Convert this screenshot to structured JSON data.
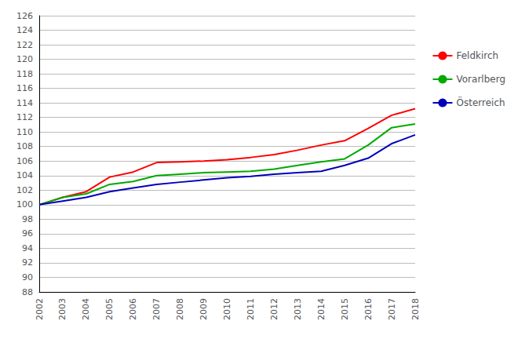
{
  "chart_data": {
    "type": "line",
    "x": [
      2002,
      2003,
      2004,
      2005,
      2006,
      2007,
      2008,
      2009,
      2010,
      2011,
      2012,
      2013,
      2014,
      2015,
      2016,
      2017,
      2018
    ],
    "xlim": [
      2002,
      2018
    ],
    "xticks": [
      2002,
      2003,
      2004,
      2005,
      2006,
      2007,
      2008,
      2009,
      2010,
      2011,
      2012,
      2013,
      2014,
      2015,
      2016,
      2017,
      2018
    ],
    "ylim": [
      88,
      126
    ],
    "yticks": [
      88,
      90,
      92,
      94,
      96,
      98,
      100,
      102,
      104,
      106,
      108,
      110,
      112,
      114,
      116,
      118,
      120,
      122,
      124,
      126
    ],
    "grid": true,
    "legend": "right",
    "series": [
      {
        "name": "Feldkirch",
        "color": "#ff0000",
        "values": [
          100.0,
          101.0,
          101.8,
          103.8,
          104.5,
          105.8,
          105.9,
          106.0,
          106.2,
          106.5,
          106.9,
          107.5,
          108.2,
          108.8,
          110.5,
          112.3,
          113.2
        ]
      },
      {
        "name": "Vorarlberg",
        "color": "#00aa00",
        "values": [
          100.0,
          101.0,
          101.5,
          102.8,
          103.2,
          104.0,
          104.2,
          104.4,
          104.5,
          104.6,
          104.9,
          105.4,
          105.9,
          106.3,
          108.2,
          110.6,
          111.1
        ]
      },
      {
        "name": "Österreich",
        "color": "#0000bb",
        "values": [
          100.0,
          100.5,
          101.0,
          101.8,
          102.3,
          102.8,
          103.1,
          103.4,
          103.7,
          103.9,
          104.2,
          104.4,
          104.6,
          105.4,
          106.4,
          108.4,
          109.6
        ]
      }
    ]
  }
}
